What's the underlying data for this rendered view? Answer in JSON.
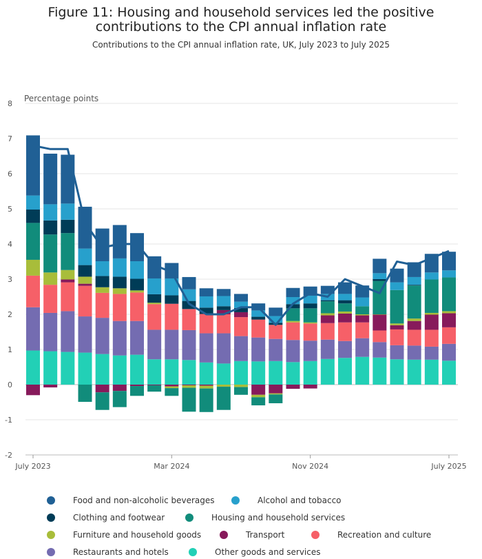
{
  "title": "Figure 11: Housing and household services led the positive contributions to the CPI annual inflation rate",
  "subtitle": "Contributions to the CPI annual inflation rate, UK, July 2023 to July 2025",
  "chart_data": {
    "type": "bar",
    "stacked": true,
    "ylabel": "Percentage points",
    "ylim": [
      -2,
      8
    ],
    "yticks": [
      -2,
      -1,
      0,
      1,
      2,
      3,
      4,
      5,
      6,
      7,
      8
    ],
    "grid": true,
    "legend_position": "bottom",
    "x_tick_labels": [
      "July 2023",
      "Mar 2024",
      "Nov 2024",
      "July 2025"
    ],
    "x_tick_indices": [
      0,
      8,
      16,
      24
    ],
    "categories": [
      "Jul 2023",
      "Aug 2023",
      "Sep 2023",
      "Oct 2023",
      "Nov 2023",
      "Dec 2023",
      "Jan 2024",
      "Feb 2024",
      "Mar 2024",
      "Apr 2024",
      "May 2024",
      "Jun 2024",
      "Jul 2024",
      "Aug 2024",
      "Sep 2024",
      "Oct 2024",
      "Nov 2024",
      "Dec 2024",
      "Jan 2025",
      "Feb 2025",
      "Mar 2025",
      "Apr 2025",
      "May 2025",
      "Jun 2025",
      "Jul 2025"
    ],
    "series": [
      {
        "name": "Other goods and services",
        "color": "#22d0b6",
        "values": [
          0.97,
          0.95,
          0.93,
          0.91,
          0.87,
          0.83,
          0.85,
          0.72,
          0.72,
          0.7,
          0.63,
          0.6,
          0.67,
          0.66,
          0.67,
          0.64,
          0.67,
          0.73,
          0.76,
          0.79,
          0.77,
          0.72,
          0.71,
          0.71,
          0.68
        ]
      },
      {
        "name": "Restaurants and hotels",
        "color": "#746cb1",
        "values": [
          1.23,
          1.09,
          1.16,
          1.03,
          1.03,
          0.98,
          0.96,
          0.84,
          0.84,
          0.85,
          0.83,
          0.86,
          0.71,
          0.68,
          0.63,
          0.63,
          0.58,
          0.55,
          0.48,
          0.53,
          0.44,
          0.4,
          0.4,
          0.37,
          0.48
        ]
      },
      {
        "name": "Recreation and culture",
        "color": "#f66068",
        "values": [
          0.9,
          0.8,
          0.82,
          0.87,
          0.71,
          0.77,
          0.81,
          0.73,
          0.74,
          0.6,
          0.55,
          0.54,
          0.54,
          0.51,
          0.4,
          0.5,
          0.49,
          0.47,
          0.53,
          0.45,
          0.33,
          0.45,
          0.45,
          0.48,
          0.47
        ]
      },
      {
        "name": "Transport",
        "color": "#871a5b",
        "values": [
          -0.3,
          -0.08,
          0.08,
          0.06,
          -0.22,
          -0.18,
          -0.04,
          -0.02,
          -0.05,
          -0.02,
          -0.03,
          0.12,
          0.14,
          -0.29,
          -0.25,
          -0.12,
          -0.11,
          0.22,
          0.25,
          0.2,
          0.45,
          0.12,
          0.25,
          0.43,
          0.4
        ]
      },
      {
        "name": "Furniture and household goods",
        "color": "#a8bd3a",
        "values": [
          0.45,
          0.35,
          0.27,
          0.2,
          0.16,
          0.16,
          0.06,
          0.04,
          -0.05,
          -0.07,
          -0.08,
          -0.06,
          -0.07,
          -0.07,
          -0.03,
          0.04,
          0.03,
          0.06,
          0.06,
          0.03,
          0.01,
          0.05,
          0.07,
          0.05,
          0.06
        ]
      },
      {
        "name": "Housing and household services",
        "color": "#118c7b",
        "values": [
          1.05,
          1.08,
          1.05,
          -0.49,
          -0.5,
          -0.46,
          -0.28,
          -0.18,
          -0.22,
          -0.68,
          -0.67,
          -0.66,
          -0.22,
          -0.23,
          -0.25,
          0.36,
          0.4,
          0.34,
          0.23,
          0.23,
          0.95,
          0.95,
          0.94,
          0.95,
          0.96
        ]
      },
      {
        "name": "Clothing and footwear",
        "color": "#003c57",
        "values": [
          0.38,
          0.4,
          0.38,
          0.33,
          0.32,
          0.33,
          0.33,
          0.24,
          0.24,
          0.23,
          0.18,
          0.11,
          0.12,
          0.08,
          0.06,
          0.12,
          0.14,
          0.03,
          0.09,
          0.0,
          0.05,
          0.0,
          0.02,
          0.0,
          0.0
        ]
      },
      {
        "name": "Alcohol and tobacco",
        "color": "#27a0cc",
        "values": [
          0.4,
          0.46,
          0.46,
          0.47,
          0.42,
          0.52,
          0.5,
          0.45,
          0.48,
          0.33,
          0.32,
          0.29,
          0.18,
          0.18,
          0.19,
          0.2,
          0.22,
          0.18,
          0.18,
          0.25,
          0.17,
          0.22,
          0.22,
          0.2,
          0.2
        ]
      },
      {
        "name": "Food and non-alcoholic beverages",
        "color": "#206095",
        "values": [
          1.71,
          1.44,
          1.39,
          1.19,
          0.93,
          0.95,
          0.8,
          0.63,
          0.44,
          0.35,
          0.23,
          0.2,
          0.22,
          0.2,
          0.24,
          0.26,
          0.26,
          0.23,
          0.33,
          0.34,
          0.41,
          0.39,
          0.42,
          0.53,
          0.53
        ]
      }
    ],
    "line": {
      "name": "CPI annual rate",
      "color": "#206095",
      "values": [
        6.8,
        6.7,
        6.7,
        4.6,
        3.9,
        4.0,
        4.0,
        3.4,
        3.2,
        2.3,
        2.0,
        2.0,
        2.2,
        2.2,
        1.7,
        2.3,
        2.6,
        2.5,
        3.0,
        2.8,
        2.6,
        3.5,
        3.4,
        3.6,
        3.8
      ]
    }
  }
}
